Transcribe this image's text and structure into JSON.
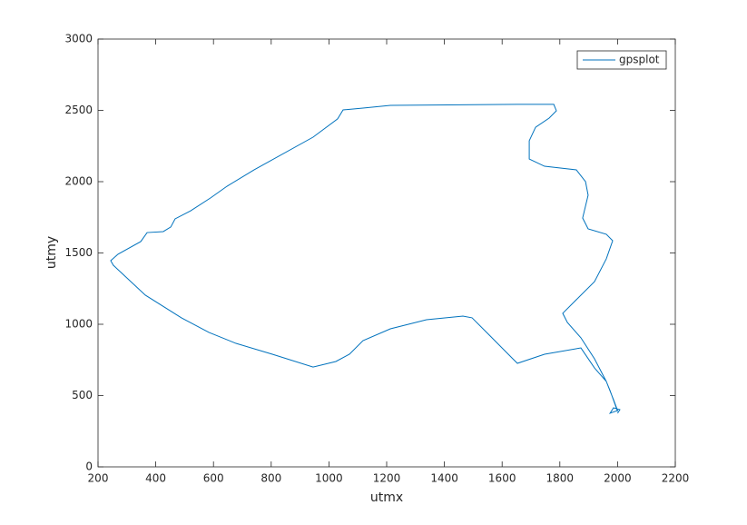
{
  "chart_data": {
    "type": "line",
    "xlabel": "utmx",
    "ylabel": "utmy",
    "xlim": [
      200,
      2200
    ],
    "xticks": [
      200,
      400,
      600,
      800,
      1000,
      1200,
      1400,
      1600,
      1800,
      2000,
      2200
    ],
    "ylim": [
      0,
      3000
    ],
    "yticks": [
      0,
      500,
      1000,
      1500,
      2000,
      2500,
      3000
    ],
    "legend": "top-right",
    "series": [
      {
        "name": "gpsplot",
        "color": "#0072bd",
        "x": [
          2000,
          1974,
          1961,
          1920,
          1873,
          1747,
          1653,
          1637,
          1559,
          1496,
          1464,
          1338,
          1213,
          1118,
          1071,
          1024,
          945,
          804,
          678,
          584,
          489,
          364,
          253,
          244,
          269,
          348,
          370,
          426,
          452,
          467,
          521,
          590,
          647,
          741,
          945,
          1030,
          1049,
          1118,
          1213,
          1653,
          1779,
          1788,
          1763,
          1716,
          1694,
          1694,
          1747,
          1857,
          1889,
          1898,
          1879,
          1898,
          1961,
          1983,
          1961,
          1920,
          1857,
          1810,
          1826,
          1873,
          1920,
          1961,
          1986,
          2000,
          1974,
          1986,
          2008,
          2000
        ],
        "values": [
          389,
          535,
          599,
          694,
          834,
          790,
          726,
          758,
          917,
          1045,
          1057,
          1032,
          968,
          885,
          790,
          739,
          700,
          790,
          866,
          943,
          1045,
          1204,
          1414,
          1446,
          1491,
          1580,
          1643,
          1650,
          1682,
          1739,
          1796,
          1886,
          1968,
          2083,
          2312,
          2440,
          2503,
          2516,
          2535,
          2542,
          2542,
          2497,
          2446,
          2382,
          2287,
          2159,
          2108,
          2083,
          2000,
          1905,
          1745,
          1669,
          1631,
          1586,
          1459,
          1299,
          1172,
          1077,
          1013,
          905,
          758,
          599,
          471,
          395,
          376,
          414,
          401,
          376
        ]
      }
    ]
  }
}
